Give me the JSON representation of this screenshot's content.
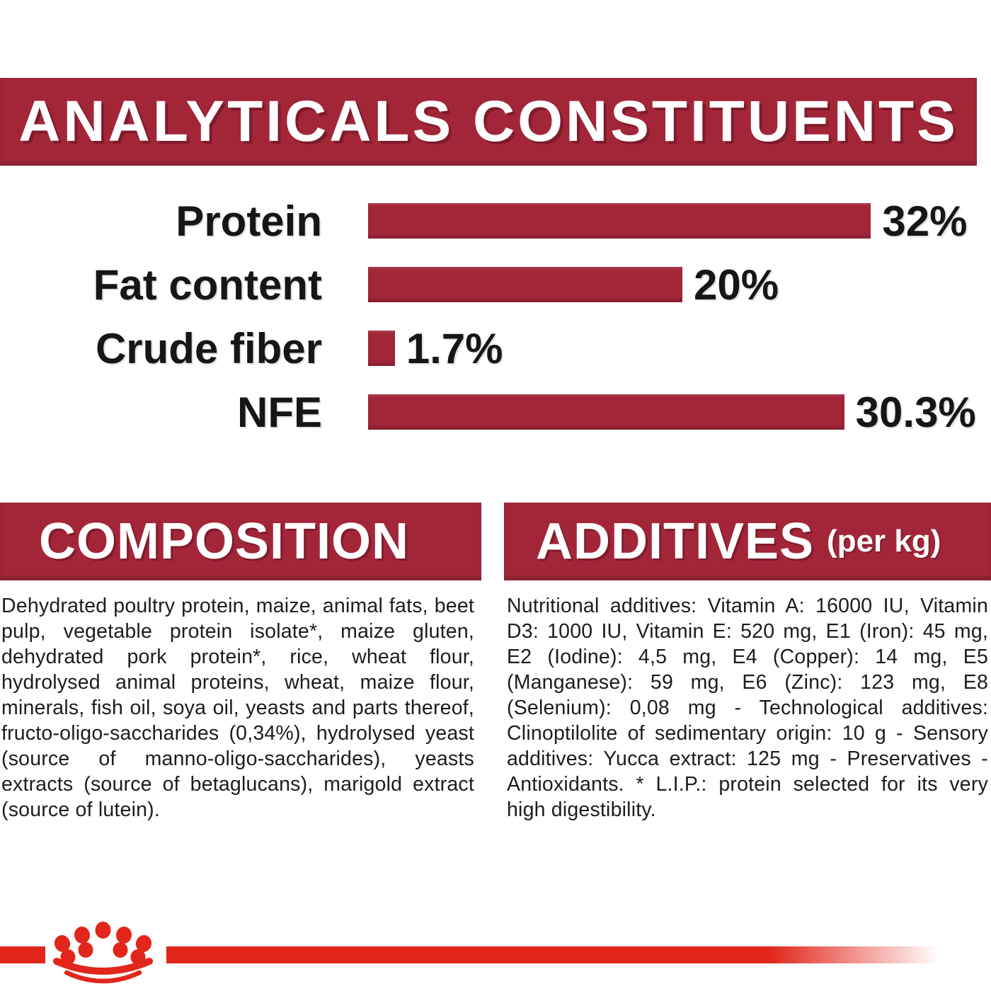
{
  "header": {
    "title": "ANALYTICALS CONSTITUENTS"
  },
  "chart_data": {
    "type": "bar",
    "orientation": "horizontal",
    "categories": [
      "Protein",
      "Fat content",
      "Crude fiber",
      "NFE"
    ],
    "values": [
      32,
      20,
      1.7,
      30.3
    ],
    "value_labels": [
      "32%",
      "20%",
      "1.7%",
      "30.3%"
    ],
    "unit": "percent",
    "xlim": [
      0,
      34
    ],
    "bar_color": "#a32638",
    "grid": "off",
    "legend": "none",
    "title": "ANALYTICALS CONSTITUENTS"
  },
  "composition": {
    "title": "COMPOSITION",
    "text": "Dehydrated poultry protein, maize, animal fats, beet pulp, vegetable protein isolate*, maize gluten, dehydrated pork protein*, rice, wheat flour, hydrolysed animal proteins, wheat, maize flour, minerals, fish oil, soya oil, yeasts and parts thereof, fructo-oligo-saccharides (0,34%), hydrolysed yeast (source of manno-oligo-saccharides), yeasts extracts (source of betaglucans), marigold extract (source of lutein)."
  },
  "additives": {
    "title": "ADDITIVES",
    "subtitle": "(per kg)",
    "text": "Nutritional additives: Vitamin A: 16000 IU, Vitamin D3: 1000 IU, Vitamin E: 520 mg, E1 (Iron): 45 mg, E2 (Iodine): 4,5 mg, E4 (Copper): 14 mg, E5 (Manganese): 59 mg, E6 (Zinc): 123 mg, E8 (Selenium): 0,08 mg - Technological additives: Clinoptilolite of sedimentary origin: 10 g - Sensory additives: Yucca extract: 125 mg - Preservatives - Antioxidants. * L.I.P.: protein selected for its very high digestibility."
  },
  "footer": {
    "logo_icon": "royal-canin-crown-icon"
  },
  "colors": {
    "banner_red": "#a32638",
    "bar_red": "#a32638",
    "accent_red": "#e2261b",
    "text_black": "#1d1d1b",
    "white": "#ffffff"
  }
}
